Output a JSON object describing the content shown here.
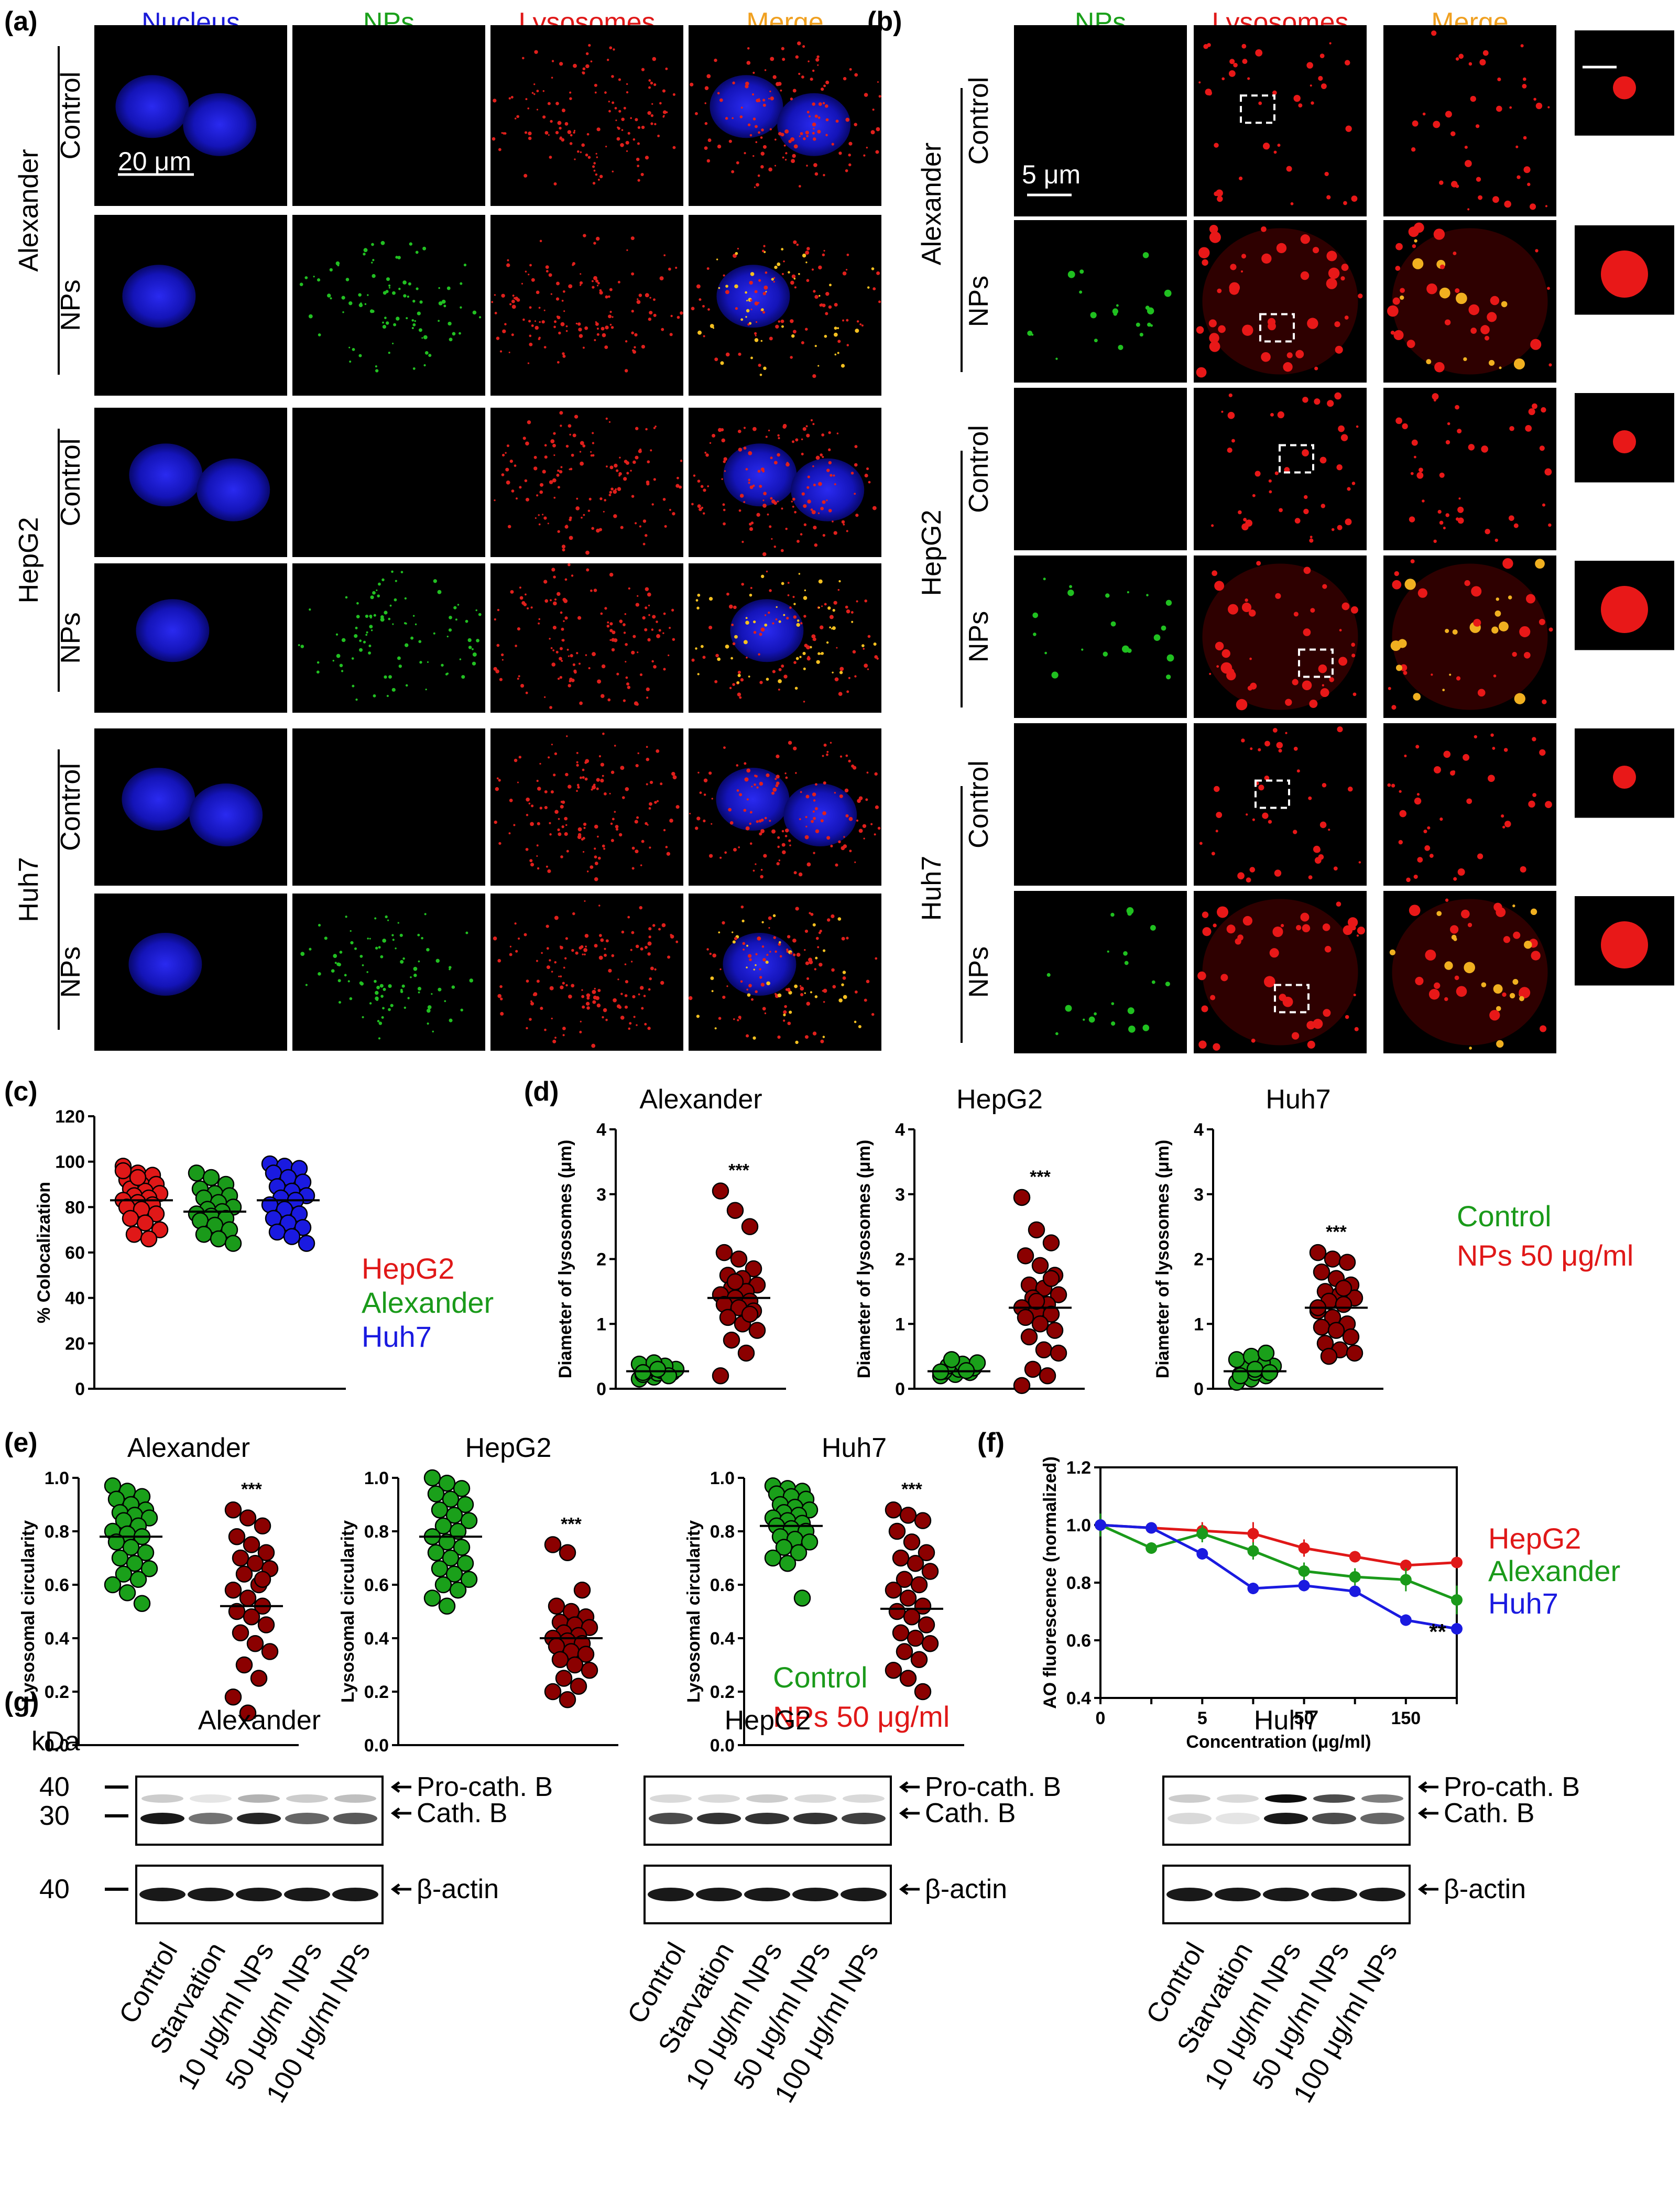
{
  "panel_labels": {
    "a": "(a)",
    "b": "(b)",
    "c": "(c)",
    "d": "(d)",
    "e": "(e)",
    "f": "(f)",
    "g": "(g)"
  },
  "colors": {
    "nucleus": "#1a1ad8",
    "nps": "#1aa01a",
    "lysosomes": "#e01818",
    "merge": "#f0a020",
    "control": "#1aa01a",
    "nps_dark": "#8b0000",
    "hepg2": "#e01818",
    "alexander": "#1a9a1a",
    "huh7": "#1a1ae0"
  },
  "panel_a": {
    "headers": [
      "Nucleus",
      "NPs",
      "Lysosomes",
      "Merge"
    ],
    "cell_lines": [
      "Alexander",
      "HepG2",
      "Huh7"
    ],
    "rows": [
      "Control",
      "NPs"
    ],
    "scalebar": "20 μm"
  },
  "panel_b": {
    "headers": [
      "NPs",
      "Lysosomes",
      "Merge"
    ],
    "cell_lines": [
      "Alexander",
      "HepG2",
      "Huh7"
    ],
    "rows": [
      "Control",
      "NPs"
    ],
    "scalebar": "5 μm"
  },
  "chart_data": [
    {
      "id": "c",
      "type": "scatter",
      "title": "",
      "ylabel": "% Colocalization",
      "ylim": [
        0,
        120
      ],
      "yticks": [
        "0",
        "20",
        "40",
        "60",
        "80",
        "100",
        "120"
      ],
      "legend": [
        "HepG2",
        "Alexander",
        "Huh7"
      ],
      "groups": [
        {
          "name": "HepG2",
          "mean": 83,
          "values": [
            98,
            95,
            94,
            92,
            90,
            90,
            88,
            87,
            86,
            85,
            84,
            83,
            82,
            81,
            80,
            79,
            77,
            75,
            73,
            70,
            68,
            66,
            96,
            93
          ]
        },
        {
          "name": "Alexander",
          "mean": 78,
          "values": [
            95,
            93,
            90,
            88,
            86,
            85,
            84,
            82,
            80,
            79,
            78,
            77,
            76,
            75,
            74,
            72,
            70,
            68,
            66,
            64
          ]
        },
        {
          "name": "Huh7",
          "mean": 83,
          "values": [
            99,
            98,
            97,
            95,
            93,
            91,
            89,
            87,
            85,
            84,
            83,
            81,
            79,
            77,
            75,
            73,
            71,
            69,
            67,
            64
          ]
        }
      ]
    },
    {
      "id": "d1",
      "type": "scatter",
      "title": "Alexander",
      "ylabel": "Diameter of lysosomes (μm)",
      "ylim": [
        0,
        4
      ],
      "yticks": [
        "0",
        "1",
        "2",
        "3",
        "4"
      ],
      "sig": "***",
      "groups": [
        {
          "name": "Control",
          "mean": 0.27,
          "values": [
            0.15,
            0.18,
            0.2,
            0.22,
            0.24,
            0.25,
            0.27,
            0.28,
            0.3,
            0.32,
            0.35,
            0.38,
            0.4,
            0.2,
            0.25,
            0.3
          ]
        },
        {
          "name": "NPs 50 μg/ml",
          "mean": 1.4,
          "values": [
            3.05,
            2.75,
            2.5,
            2.1,
            2.0,
            1.85,
            1.75,
            1.7,
            1.6,
            1.55,
            1.5,
            1.45,
            1.4,
            1.35,
            1.3,
            1.25,
            1.2,
            1.1,
            1.0,
            0.9,
            0.75,
            0.55,
            0.2,
            1.65,
            1.15
          ]
        }
      ]
    },
    {
      "id": "d2",
      "type": "scatter",
      "title": "HepG2",
      "ylabel": "Diameter of lysosomes (μm)",
      "ylim": [
        0,
        4
      ],
      "yticks": [
        "0",
        "1",
        "2",
        "3",
        "4"
      ],
      "sig": "***",
      "groups": [
        {
          "name": "Control",
          "mean": 0.27,
          "values": [
            0.2,
            0.22,
            0.25,
            0.27,
            0.3,
            0.32,
            0.35,
            0.38,
            0.4,
            0.45,
            0.28,
            0.26
          ]
        },
        {
          "name": "NPs 50 μg/ml",
          "mean": 1.25,
          "values": [
            2.95,
            2.45,
            2.25,
            2.05,
            1.9,
            1.75,
            1.6,
            1.55,
            1.45,
            1.4,
            1.3,
            1.25,
            1.2,
            1.15,
            1.1,
            1.0,
            0.9,
            0.8,
            0.6,
            0.55,
            0.3,
            0.2,
            0.05,
            1.35,
            1.7
          ]
        }
      ]
    },
    {
      "id": "d3",
      "type": "scatter",
      "title": "Huh7",
      "ylabel": "Diameter of lysosomes (μm)",
      "ylim": [
        0,
        4
      ],
      "yticks": [
        "0",
        "1",
        "2",
        "3",
        "4"
      ],
      "sig": "***",
      "legend": [
        "Control",
        "NPs 50 μg/ml"
      ],
      "groups": [
        {
          "name": "Control",
          "mean": 0.27,
          "values": [
            0.1,
            0.15,
            0.2,
            0.22,
            0.25,
            0.28,
            0.3,
            0.32,
            0.35,
            0.38,
            0.4,
            0.45,
            0.5,
            0.55,
            0.2,
            0.3,
            0.25
          ]
        },
        {
          "name": "NPs 50 μg/ml",
          "mean": 1.25,
          "values": [
            2.1,
            2.0,
            1.95,
            1.8,
            1.7,
            1.6,
            1.5,
            1.45,
            1.4,
            1.35,
            1.3,
            1.2,
            1.1,
            1.0,
            0.95,
            0.9,
            0.8,
            0.7,
            0.6,
            0.55,
            0.5,
            1.55,
            1.25
          ]
        }
      ]
    },
    {
      "id": "e1",
      "type": "scatter",
      "title": "Alexander",
      "ylabel": "Lysosomal circularity",
      "ylim": [
        0,
        1
      ],
      "yticks": [
        "0.0",
        "0.2",
        "0.4",
        "0.6",
        "0.8",
        "1.0"
      ],
      "sig": "***",
      "groups": [
        {
          "name": "Control",
          "mean": 0.78,
          "values": [
            0.97,
            0.95,
            0.93,
            0.92,
            0.9,
            0.88,
            0.87,
            0.86,
            0.85,
            0.84,
            0.82,
            0.8,
            0.79,
            0.78,
            0.76,
            0.74,
            0.72,
            0.7,
            0.68,
            0.66,
            0.64,
            0.62,
            0.6,
            0.57,
            0.53
          ]
        },
        {
          "name": "NPs 50 μg/ml",
          "mean": 0.52,
          "values": [
            0.88,
            0.85,
            0.82,
            0.78,
            0.75,
            0.72,
            0.7,
            0.68,
            0.66,
            0.64,
            0.6,
            0.58,
            0.55,
            0.52,
            0.5,
            0.48,
            0.45,
            0.42,
            0.38,
            0.35,
            0.3,
            0.25,
            0.18,
            0.12,
            0.62
          ]
        }
      ]
    },
    {
      "id": "e2",
      "type": "scatter",
      "title": "HepG2",
      "ylabel": "Lysosomal circularity",
      "ylim": [
        0,
        1
      ],
      "yticks": [
        "0.0",
        "0.2",
        "0.4",
        "0.6",
        "0.8",
        "1.0"
      ],
      "sig": "***",
      "groups": [
        {
          "name": "Control",
          "mean": 0.78,
          "values": [
            1.0,
            0.98,
            0.96,
            0.94,
            0.92,
            0.9,
            0.88,
            0.86,
            0.84,
            0.82,
            0.8,
            0.78,
            0.76,
            0.74,
            0.72,
            0.7,
            0.68,
            0.66,
            0.64,
            0.62,
            0.6,
            0.58,
            0.55,
            0.52
          ]
        },
        {
          "name": "NPs 50 μg/ml",
          "mean": 0.4,
          "values": [
            0.75,
            0.72,
            0.58,
            0.52,
            0.5,
            0.48,
            0.46,
            0.45,
            0.44,
            0.42,
            0.41,
            0.4,
            0.39,
            0.38,
            0.37,
            0.35,
            0.34,
            0.32,
            0.3,
            0.28,
            0.25,
            0.22,
            0.2,
            0.17
          ]
        }
      ]
    },
    {
      "id": "e3",
      "type": "scatter",
      "title": "Huh7",
      "ylabel": "Lysosomal circularity",
      "ylim": [
        0,
        1
      ],
      "yticks": [
        "0.0",
        "0.2",
        "0.4",
        "0.6",
        "0.8",
        "1.0"
      ],
      "sig": "***",
      "legend": [
        "Control",
        "NPs 50 μg/ml"
      ],
      "groups": [
        {
          "name": "Control",
          "mean": 0.82,
          "values": [
            0.97,
            0.96,
            0.95,
            0.94,
            0.93,
            0.92,
            0.9,
            0.89,
            0.88,
            0.87,
            0.86,
            0.85,
            0.84,
            0.83,
            0.82,
            0.81,
            0.8,
            0.78,
            0.77,
            0.76,
            0.74,
            0.72,
            0.7,
            0.68,
            0.55
          ]
        },
        {
          "name": "NPs 50 μg/ml",
          "mean": 0.51,
          "values": [
            0.88,
            0.86,
            0.84,
            0.8,
            0.76,
            0.72,
            0.7,
            0.68,
            0.65,
            0.62,
            0.6,
            0.58,
            0.55,
            0.52,
            0.5,
            0.48,
            0.45,
            0.42,
            0.4,
            0.38,
            0.35,
            0.32,
            0.28,
            0.25,
            0.2
          ]
        }
      ]
    },
    {
      "id": "f",
      "type": "line",
      "title": "",
      "xlabel": "Concentration (μg/ml)",
      "ylabel": "AO fluorescence (normalized)",
      "x": [
        "0",
        "",
        "5",
        "",
        "50",
        "",
        "150",
        ""
      ],
      "ylim": [
        0.4,
        1.2
      ],
      "yticks": [
        "0.4",
        "0.6",
        "0.8",
        "1.0",
        "1.2"
      ],
      "sig": "**",
      "series": [
        {
          "name": "HepG2",
          "values": [
            1.0,
            0.99,
            0.98,
            0.97,
            0.92,
            0.89,
            0.86,
            0.87
          ],
          "err": [
            0.02,
            0.01,
            0.03,
            0.04,
            0.03,
            0.02,
            0.02,
            0.02
          ]
        },
        {
          "name": "Alexander",
          "values": [
            1.0,
            0.92,
            0.97,
            0.91,
            0.84,
            0.82,
            0.81,
            0.74
          ],
          "err": [
            0.04,
            0.02,
            0.03,
            0.03,
            0.03,
            0.03,
            0.04,
            0.05
          ]
        },
        {
          "name": "Huh7",
          "values": [
            1.0,
            0.99,
            0.9,
            0.78,
            0.79,
            0.77,
            0.67,
            0.64
          ],
          "err": [
            0.02,
            0.01,
            0.02,
            0.02,
            0.02,
            0.01,
            0.02,
            0.02
          ]
        }
      ]
    }
  ],
  "panel_g": {
    "kda_label": "kDa",
    "markers": [
      "40",
      "30",
      "40"
    ],
    "cell_lines": [
      "Alexander",
      "HepG2",
      "Huh7"
    ],
    "bands": [
      "Pro-cath. B",
      "Cath. B",
      "β-actin"
    ],
    "lanes": [
      "Control",
      "Starvation",
      "10 μg/ml NPs",
      "50 μg/ml NPs",
      "100 μg/ml NPs"
    ]
  }
}
